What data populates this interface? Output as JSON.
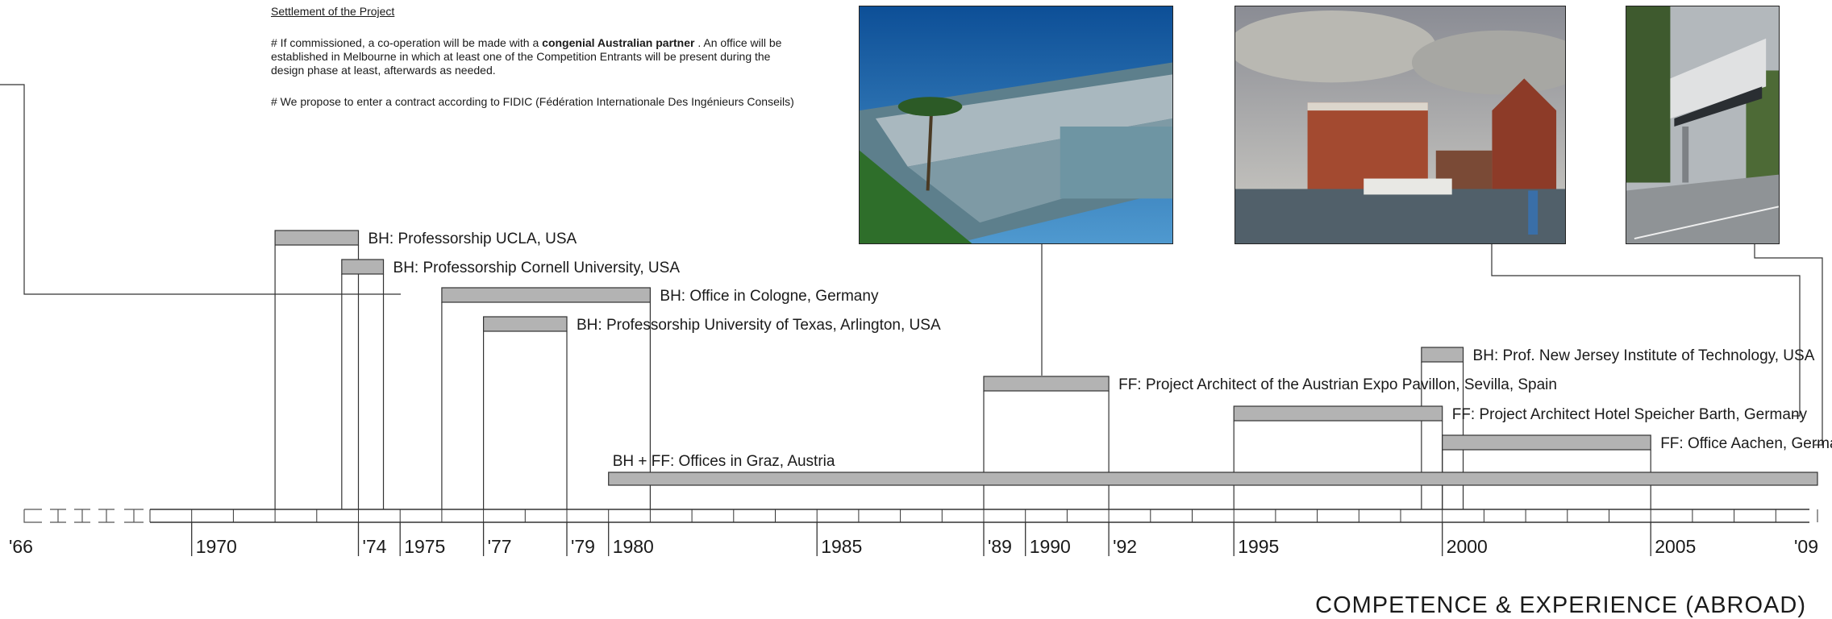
{
  "settlement": {
    "title": "Settlement of the Project",
    "p1_pre": "#  If commissioned, a co-operation will be made with a ",
    "p1_bold": "congenial Australian partner",
    "p1_post": " . An office will be established in Melbourne in which at least one of the Competition Entrants will be present during the design phase at least, afterwards as needed.",
    "p2": "#  We propose to enter a contract according to FIDIC (Fédération Internationale Des Ingénieurs Conseils)"
  },
  "timeline": {
    "start_year": 1966,
    "end_year": 2009,
    "axis_labels": [
      {
        "year": 1966,
        "text": "'66"
      },
      {
        "year": 1970,
        "text": "1970"
      },
      {
        "year": 1974,
        "text": "'74"
      },
      {
        "year": 1975,
        "text": "1975"
      },
      {
        "year": 1977,
        "text": "'77"
      },
      {
        "year": 1979,
        "text": "'79"
      },
      {
        "year": 1980,
        "text": "1980"
      },
      {
        "year": 1985,
        "text": "1985"
      },
      {
        "year": 1989,
        "text": "'89"
      },
      {
        "year": 1990,
        "text": "1990"
      },
      {
        "year": 1992,
        "text": "'92"
      },
      {
        "year": 1995,
        "text": "1995"
      },
      {
        "year": 2000,
        "text": "2000"
      },
      {
        "year": 2005,
        "text": "2005"
      },
      {
        "year": 2009,
        "text": "'09"
      }
    ],
    "events": [
      {
        "label": "BH: Professorship UCLA, USA",
        "start": 1972,
        "end": 1974
      },
      {
        "label": "BH: Professorship Cornell University, USA",
        "start": 1973.6,
        "end": 1974.6
      },
      {
        "label": "BH: Office in Cologne, Germany",
        "start": 1976,
        "end": 1981
      },
      {
        "label": "BH: Professorship University of Texas, Arlington, USA",
        "start": 1977,
        "end": 1979
      },
      {
        "label": "BH: Prof. New Jersey Institute of Technology, USA",
        "start": 1999.5,
        "end": 2000.5
      },
      {
        "label": "FF: Project Architect of the Austrian Expo Pavillon, Sevilla, Spain",
        "start": 1989,
        "end": 1992
      },
      {
        "label": "FF: Project Architect Hotel Speicher Barth, Germany",
        "start": 1995,
        "end": 2000
      },
      {
        "label": "FF: Office Aachen, Germany",
        "start": 2000,
        "end": 2005
      },
      {
        "label": "BH + FF: Offices in Graz, Austria",
        "start": 1980,
        "end": 2009
      }
    ]
  },
  "photos": [
    {
      "name": "expo-pavilion-sevilla-photo",
      "event": 5
    },
    {
      "name": "hotel-speicher-barth-photo",
      "event": 6
    },
    {
      "name": "aachen-building-photo",
      "event": 7
    }
  ],
  "footer": {
    "title": "COMPETENCE & EXPERIENCE (ABROAD)"
  },
  "colors": {
    "bar_fill": "#b3b3b3",
    "line": "#333333"
  }
}
